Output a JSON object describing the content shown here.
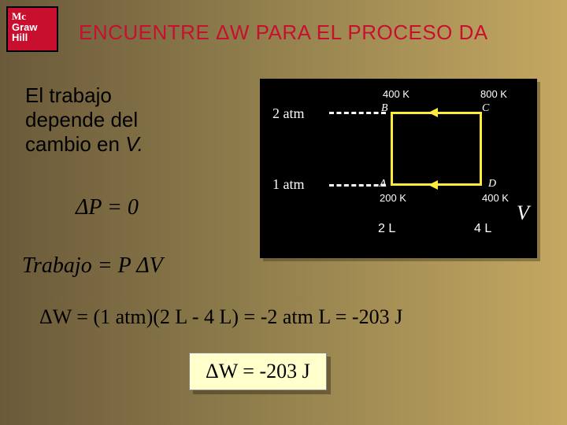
{
  "logo": {
    "line1": "Mc",
    "line2": "Graw",
    "line3": "Hill"
  },
  "title": "ENCUENTRE ΔW PARA EL PROCESO DA",
  "left_text": {
    "l1": "El trabajo",
    "l2": "depende del",
    "l3": "cambio en ",
    "v": "V."
  },
  "dp": "ΔP = 0",
  "trabajo": "Trabajo = P ΔV",
  "chart": {
    "background": "#000000",
    "cycle_color": "#ffeb3b",
    "dash_color": "#ffffff",
    "y_labels": {
      "top": "2 atm",
      "bottom": "1 atm"
    },
    "x_labels": {
      "left": "2 L",
      "right": "4 L"
    },
    "points": {
      "A": {
        "label": "A",
        "temp": "200 K"
      },
      "B": {
        "label": "B",
        "temp": "400 K"
      },
      "C": {
        "label": "C",
        "temp": "800 K"
      },
      "D": {
        "label": "D",
        "temp": "400 K"
      }
    },
    "axis_v": "V"
  },
  "eq_main": "ΔW = (1 atm)(2 L - 4 L) = -2 atm L = -203 J",
  "answer": "ΔW = -203 J"
}
